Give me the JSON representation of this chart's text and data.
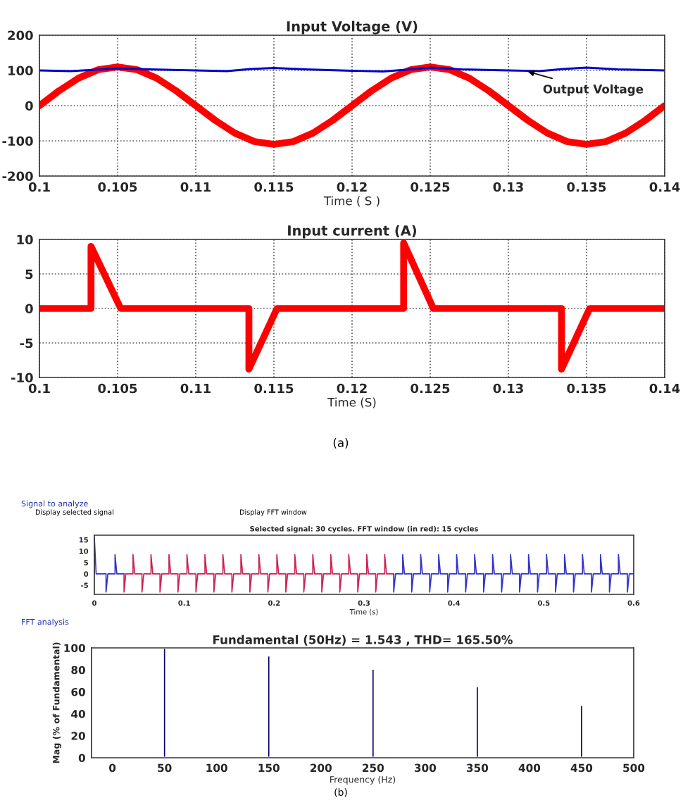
{
  "chart_data": [
    {
      "type": "line",
      "title": "Input Voltage (V)",
      "xlabel": "Time ( S )",
      "xlim": [
        0.1,
        0.14
      ],
      "ylim": [
        -200,
        200
      ],
      "xticks": [
        0.1,
        0.105,
        0.11,
        0.115,
        0.12,
        0.125,
        0.13,
        0.135,
        0.14
      ],
      "yticks": [
        -200,
        -100,
        0,
        100,
        200
      ],
      "grid": true,
      "line_style": "solid",
      "series": [
        {
          "color": "#ff0000",
          "x": [
            0.1,
            0.10125,
            0.1025,
            0.10375,
            0.105,
            0.10625,
            0.1075,
            0.10875,
            0.11,
            0.11125,
            0.1125,
            0.11375,
            0.115,
            0.11625,
            0.1175,
            0.11875,
            0.12,
            0.12125,
            0.1225,
            0.12375,
            0.125,
            0.12625,
            0.1275,
            0.12875,
            0.13,
            0.13125,
            0.1325,
            0.13375,
            0.135,
            0.13625,
            0.1375,
            0.13875,
            0.14
          ],
          "values": [
            0,
            42,
            78,
            102,
            110,
            102,
            78,
            42,
            0,
            -42,
            -78,
            -102,
            -110,
            -102,
            -78,
            -42,
            0,
            42,
            78,
            102,
            110,
            102,
            78,
            42,
            0,
            -42,
            -78,
            -102,
            -110,
            -102,
            -78,
            -42,
            0
          ]
        },
        {
          "color": "#0000cc",
          "x": [
            0.1,
            0.102,
            0.104,
            0.105,
            0.107,
            0.11,
            0.112,
            0.1135,
            0.115,
            0.117,
            0.12,
            0.122,
            0.124,
            0.125,
            0.127,
            0.13,
            0.132,
            0.1335,
            0.135,
            0.137,
            0.14
          ],
          "values": [
            100,
            98,
            103,
            106,
            103,
            100,
            98,
            104,
            107,
            103,
            99,
            97,
            104,
            108,
            103,
            100,
            98,
            104,
            108,
            103,
            100
          ]
        }
      ],
      "annotations": [
        {
          "text": "Output Voltage",
          "x": 0.131,
          "y": 100
        }
      ]
    },
    {
      "type": "line",
      "title": "Input current (A)",
      "xlabel": "Time (S)",
      "xlim": [
        0.1,
        0.14
      ],
      "ylim": [
        -10,
        10
      ],
      "xticks": [
        0.1,
        0.105,
        0.11,
        0.115,
        0.12,
        0.125,
        0.13,
        0.135,
        0.14
      ],
      "yticks": [
        -10,
        -5,
        0,
        5,
        10
      ],
      "grid": true,
      "line_style": "solid",
      "series": [
        {
          "color": "#ff0000",
          "x": [
            0.1,
            0.1033,
            0.1033,
            0.1052,
            0.1134,
            0.1134,
            0.1152,
            0.1233,
            0.1233,
            0.1252,
            0.1334,
            0.1334,
            0.1352,
            0.14
          ],
          "values": [
            0,
            0,
            9,
            0,
            0,
            -8.8,
            0,
            0,
            9.5,
            0,
            0,
            -8.8,
            0,
            0
          ]
        }
      ],
      "annotations": [
        "(a)"
      ]
    },
    {
      "type": "line",
      "title": "Selected signal: 30 cycles. FFT window (in red): 15 cycles",
      "xlabel": "Time (s)",
      "xlim": [
        0,
        0.6
      ],
      "ylim": [
        -9,
        17
      ],
      "xticks": [
        0,
        0.1,
        0.2,
        0.3,
        0.4,
        0.5,
        0.6
      ],
      "yticks": [
        -5,
        0,
        5,
        10,
        15
      ],
      "line_style": "solid",
      "series": [
        {
          "color": "#cc2255",
          "x": [
            0.033,
            0.033,
            0.035,
            0.043,
            0.043,
            0.045,
            0.053,
            0.053,
            0.055,
            0.063,
            0.063,
            0.065,
            0.073,
            0.073,
            0.075,
            0.083,
            0.083,
            0.085,
            0.093,
            0.093,
            0.095,
            0.103,
            0.103,
            0.105,
            0.113,
            0.113,
            0.115,
            0.123,
            0.123,
            0.125,
            0.133,
            0.133,
            0.135,
            0.143,
            0.143,
            0.145,
            0.153,
            0.153,
            0.155,
            0.163,
            0.163,
            0.165,
            0.173,
            0.173,
            0.175,
            0.183,
            0.183,
            0.185,
            0.193,
            0.193,
            0.195,
            0.203,
            0.203,
            0.205,
            0.213,
            0.213,
            0.215,
            0.223,
            0.223,
            0.225,
            0.233,
            0.233,
            0.235,
            0.243,
            0.243,
            0.245,
            0.253,
            0.253,
            0.255,
            0.263,
            0.263,
            0.265,
            0.273,
            0.273,
            0.275,
            0.283,
            0.283,
            0.285,
            0.293,
            0.293,
            0.295,
            0.303,
            0.303,
            0.305,
            0.313,
            0.313,
            0.315,
            0.323,
            0.323,
            0.325,
            0.333
          ],
          "values": [
            0,
            -8,
            0,
            0,
            8.5,
            0,
            0,
            -8,
            0,
            0,
            8.5,
            0,
            0,
            -8,
            0,
            0,
            8.5,
            0,
            0,
            -8,
            0,
            0,
            8.5,
            0,
            0,
            -8,
            0,
            0,
            8.5,
            0,
            0,
            -8,
            0,
            0,
            8.5,
            0,
            0,
            -8,
            0,
            0,
            8.5,
            0,
            0,
            -8,
            0,
            0,
            8.5,
            0,
            0,
            -8,
            0,
            0,
            8.5,
            0,
            0,
            -8,
            0,
            0,
            8.5,
            0,
            0,
            -8,
            0,
            0,
            8.5,
            0,
            0,
            -8,
            0,
            0,
            8.5,
            0,
            0,
            -8,
            0,
            0,
            8.5,
            0,
            0,
            -8,
            0,
            0,
            8.5,
            0,
            0,
            -8,
            0,
            0,
            8.5,
            0,
            0
          ]
        },
        {
          "color": "#3333cc",
          "x": [
            0,
            0,
            0.002,
            0.013,
            0.013,
            0.015,
            0.023,
            0.023,
            0.025,
            0.033,
            0.183,
            0.333,
            0.333,
            0.335,
            0.343,
            0.343,
            0.345,
            0.353,
            0.353,
            0.355,
            0.363,
            0.363,
            0.365,
            0.373,
            0.373,
            0.375,
            0.383,
            0.383,
            0.385,
            0.393,
            0.393,
            0.395,
            0.403,
            0.403,
            0.405,
            0.413,
            0.413,
            0.415,
            0.423,
            0.423,
            0.425,
            0.433,
            0.433,
            0.435,
            0.443,
            0.443,
            0.445,
            0.453,
            0.453,
            0.455,
            0.463,
            0.463,
            0.465,
            0.473,
            0.473,
            0.475,
            0.483,
            0.483,
            0.485,
            0.493,
            0.493,
            0.495,
            0.503,
            0.503,
            0.505,
            0.513,
            0.513,
            0.515,
            0.523,
            0.523,
            0.525,
            0.533,
            0.533,
            0.535,
            0.543,
            0.543,
            0.545,
            0.553,
            0.553,
            0.555,
            0.563,
            0.563,
            0.565,
            0.573,
            0.573,
            0.575,
            0.583,
            0.583,
            0.585,
            0.593,
            0.593,
            0.595,
            0.6
          ],
          "values": [
            0,
            16,
            0,
            0,
            -8,
            0,
            0,
            8.5,
            0,
            0,
            null,
            0,
            -8,
            0,
            0,
            8.5,
            0,
            0,
            -8,
            0,
            0,
            8.5,
            0,
            0,
            -8,
            0,
            0,
            8.5,
            0,
            0,
            -8,
            0,
            0,
            8.5,
            0,
            0,
            -8,
            0,
            0,
            8.5,
            0,
            0,
            -8,
            0,
            0,
            8.5,
            0,
            0,
            -8,
            0,
            0,
            8.5,
            0,
            0,
            -8,
            0,
            0,
            8.5,
            0,
            0,
            -8,
            0,
            0,
            8.5,
            0,
            0,
            -8,
            0,
            0,
            8.5,
            0,
            0,
            -8,
            0,
            0,
            8.5,
            0,
            0,
            -8,
            0,
            0,
            8.5,
            0,
            0,
            -8,
            0,
            0,
            8.5,
            0,
            0,
            -8,
            0,
            0
          ]
        }
      ],
      "annotations": [
        "Signal to analyze",
        "Display selected signal",
        "Display FFT window"
      ]
    },
    {
      "type": "bar",
      "title": "Fundamental (50Hz) = 1.543 , THD= 165.50%",
      "xlabel": "Frequency (Hz)",
      "ylabel": "Mag (% of Fundamental)",
      "xlim": [
        -20,
        500
      ],
      "ylim": [
        0,
        100
      ],
      "xticks": [
        0,
        50,
        100,
        150,
        200,
        250,
        300,
        350,
        400,
        450,
        500
      ],
      "yticks": [
        0,
        20,
        40,
        60,
        80,
        100
      ],
      "color": "#000066",
      "x": [
        0,
        16.7,
        33.3,
        50,
        66.7,
        83.3,
        100,
        116.7,
        133.3,
        150,
        166.7,
        183.3,
        200,
        216.7,
        233.3,
        250,
        266.7,
        283.3,
        300,
        316.7,
        333.3,
        350,
        366.7,
        383.3,
        400,
        416.7,
        433.3,
        450,
        466.7,
        483.3
      ],
      "values": [
        1,
        1,
        1,
        100,
        1,
        1,
        1,
        1,
        1,
        93,
        1,
        1,
        1,
        1,
        1,
        81,
        1,
        1,
        1,
        1,
        1,
        65,
        1,
        1,
        1,
        1,
        1,
        48,
        1,
        1
      ],
      "annotations": [
        "FFT analysis",
        "(b)"
      ]
    }
  ]
}
